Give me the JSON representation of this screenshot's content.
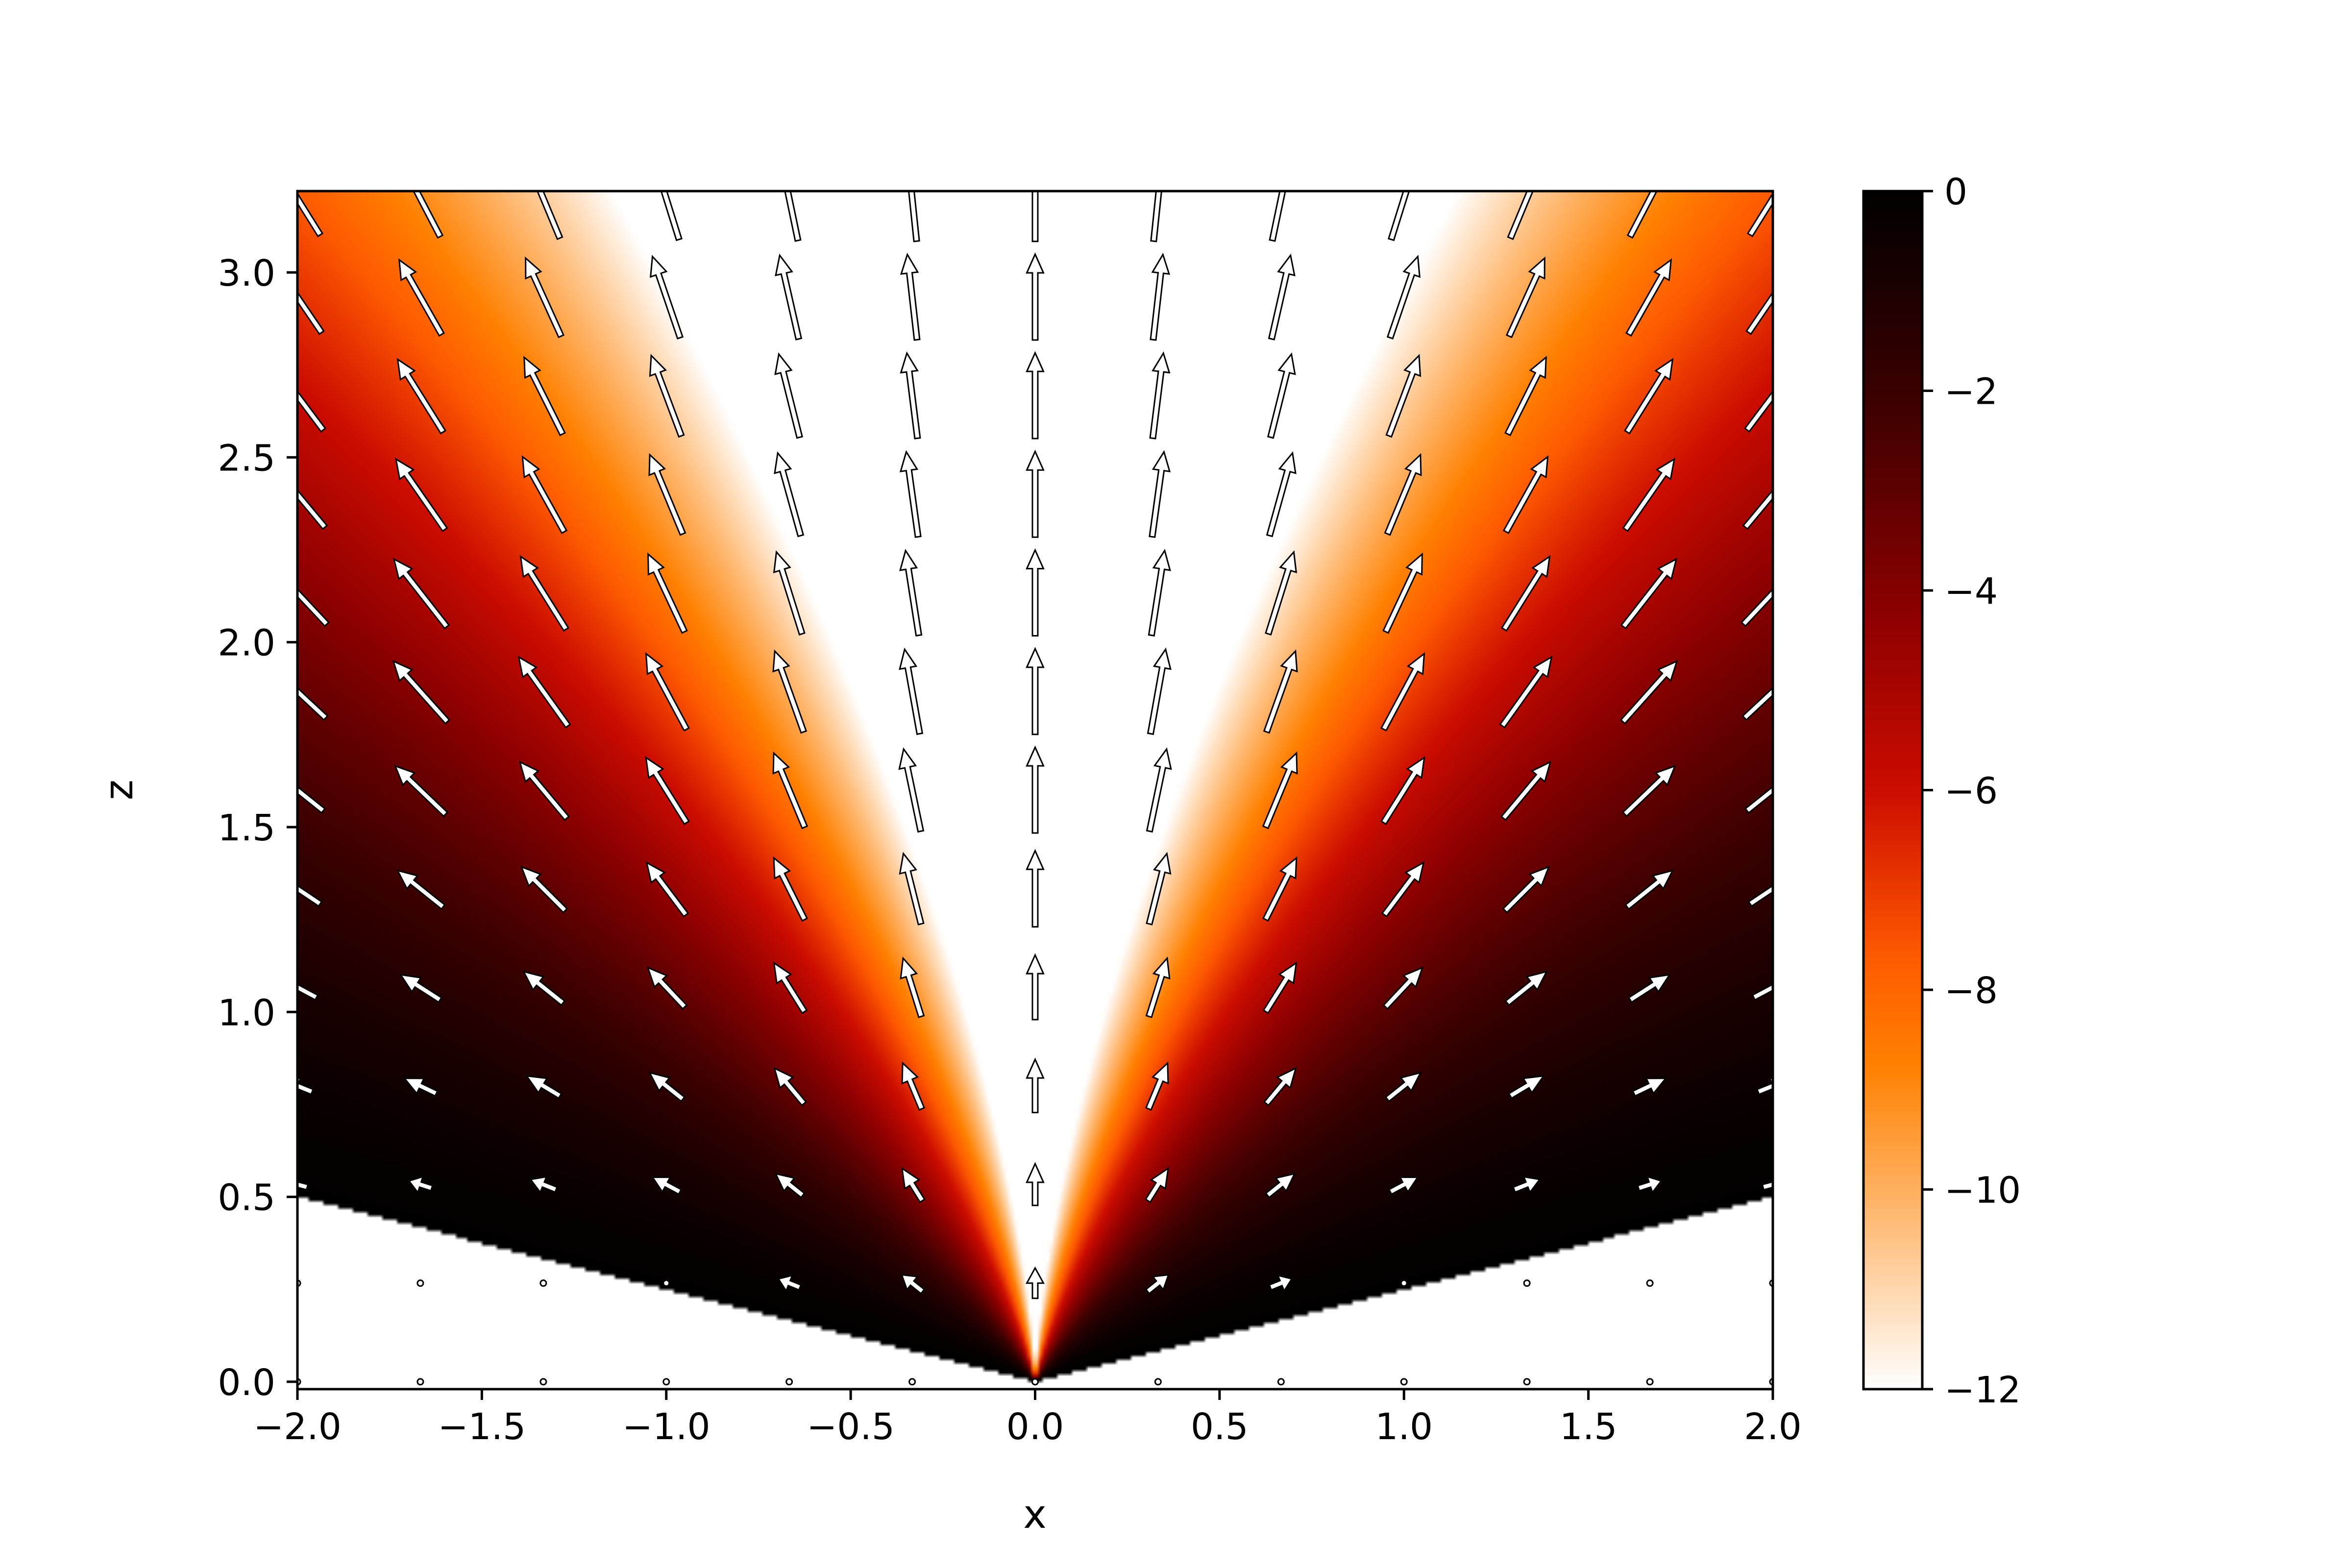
{
  "chart_data": {
    "type": "heatmap",
    "overlay": "quiver",
    "title": "",
    "xlabel": "x",
    "ylabel": "z",
    "xlim": [
      -2.0,
      2.0
    ],
    "ylim": [
      -0.02,
      3.22
    ],
    "x_ticks": [
      -2.0,
      -1.5,
      -1.0,
      -0.5,
      0.0,
      0.5,
      1.0,
      1.5,
      2.0
    ],
    "x_tick_labels": [
      "−2.0",
      "−1.5",
      "−1.0",
      "−0.5",
      "0.0",
      "0.5",
      "1.0",
      "1.5",
      "2.0"
    ],
    "y_ticks": [
      0.0,
      0.5,
      1.0,
      1.5,
      2.0,
      2.5,
      3.0
    ],
    "y_tick_labels": [
      "0.0",
      "0.5",
      "1.0",
      "1.5",
      "2.0",
      "2.5",
      "3.0"
    ],
    "field": {
      "description": "log-scaled scalar field, zero at z = 0.25|x| boundary, minimum near x = 0",
      "domain_lower_boundary_slope": 0.25,
      "center_min": -12,
      "outer_max": 0
    },
    "colorbar": {
      "vmin": -12,
      "vmax": 0,
      "ticks": [
        0,
        -2,
        -4,
        -6,
        -8,
        -10,
        -12
      ],
      "tick_labels": [
        "0",
        "−2",
        "−4",
        "−6",
        "−8",
        "−10",
        "−12"
      ],
      "colormap": [
        "#ffffff",
        "#ffc080",
        "#ff8000",
        "#ff5a00",
        "#cc0c00",
        "#8b0000",
        "#3a0000",
        "#000000"
      ]
    },
    "quiver": {
      "x": [
        -2.0,
        -1.6667,
        -1.3333,
        -1.0,
        -0.6667,
        -0.3333,
        0.0,
        0.3333,
        0.6667,
        1.0,
        1.3333,
        1.6667,
        2.0
      ],
      "z": [
        0.0,
        0.2667,
        0.5333,
        0.8,
        1.0667,
        1.3333,
        1.6,
        1.8667,
        2.1333,
        2.4,
        2.6667,
        2.9333,
        3.2
      ],
      "direction": "radial outward from origin",
      "color": "#ffffff",
      "edge_color": "#000000"
    }
  }
}
